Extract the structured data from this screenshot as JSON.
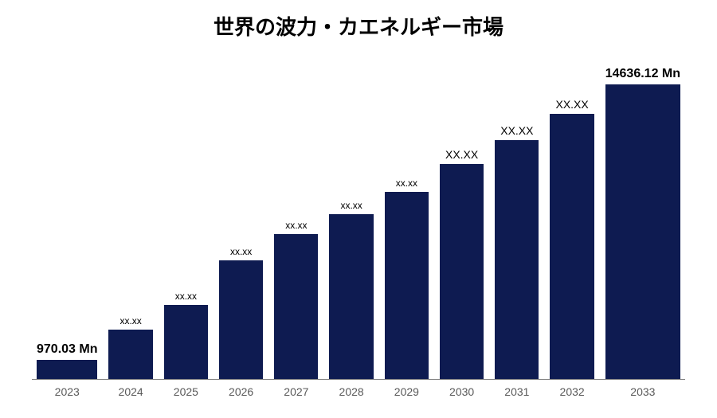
{
  "chart": {
    "type": "bar",
    "title": "世界の波力・カエネルギー市場",
    "title_fontsize": 26,
    "title_fontweight": "700",
    "title_color": "#000000",
    "background_color": "#ffffff",
    "axis_line_color": "#808080",
    "ymax": 15800,
    "bars": [
      {
        "year": "2023",
        "value": 970.03,
        "label": "970.03 Mn",
        "label_fontsize": 16,
        "label_fontweight": "700"
      },
      {
        "year": "2024",
        "value": 2450,
        "label": "xx.xx",
        "label_fontsize": 12,
        "label_fontweight": "400"
      },
      {
        "year": "2025",
        "value": 3700,
        "label": "xx.xx",
        "label_fontsize": 12,
        "label_fontweight": "400"
      },
      {
        "year": "2026",
        "value": 5900,
        "label": "xx.xx",
        "label_fontsize": 12,
        "label_fontweight": "400"
      },
      {
        "year": "2027",
        "value": 7200,
        "label": "xx.xx",
        "label_fontsize": 12,
        "label_fontweight": "400"
      },
      {
        "year": "2028",
        "value": 8200,
        "label": "xx.xx",
        "label_fontsize": 12,
        "label_fontweight": "400"
      },
      {
        "year": "2029",
        "value": 9300,
        "label": "xx.xx",
        "label_fontsize": 12,
        "label_fontweight": "400"
      },
      {
        "year": "2030",
        "value": 10700,
        "label": "XX.XX",
        "label_fontsize": 14,
        "label_fontweight": "400"
      },
      {
        "year": "2031",
        "value": 11900,
        "label": "XX.XX",
        "label_fontsize": 14,
        "label_fontweight": "400"
      },
      {
        "year": "2032",
        "value": 13200,
        "label": "XX.XX",
        "label_fontsize": 14,
        "label_fontweight": "400"
      },
      {
        "year": "2033",
        "value": 14636.12,
        "label": "14636.12 Mn",
        "label_fontsize": 16,
        "label_fontweight": "700"
      }
    ],
    "bar_color": "#0e1b51",
    "xaxis_label_color": "#595959",
    "xaxis_label_fontsize": 14
  }
}
